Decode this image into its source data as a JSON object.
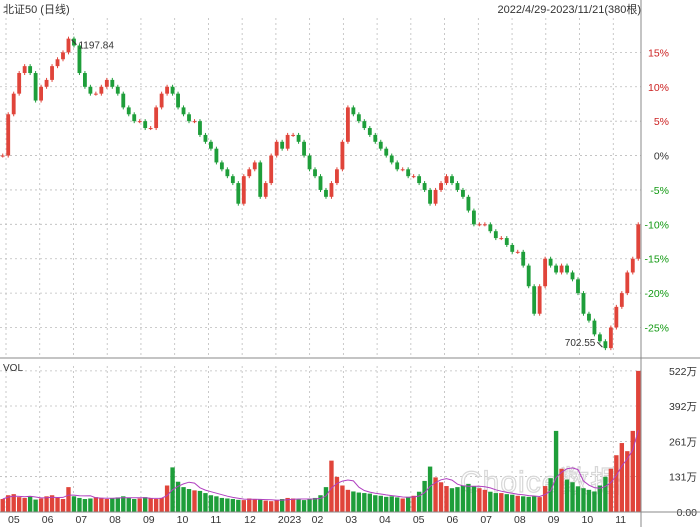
{
  "header": {
    "title": "北证50 (日线)",
    "range": "2022/4/29-2023/11/21(380根)"
  },
  "volume_panel": {
    "label": "VOL"
  },
  "watermark": "Choice数据",
  "colors": {
    "up": "#e0443a",
    "down": "#1e9e3a",
    "grid": "#bcbcbc",
    "text": "#333333",
    "axis_pos": "#cc2222",
    "axis_neg": "#119911",
    "ma": "#b040c0",
    "watermark": "#d8d8d8"
  },
  "chart_data": [
    {
      "type": "line",
      "title": "北证50 (日线)",
      "subtitle": "2022/4/29-2023/11/21(380根)",
      "ylabel": "",
      "y_unit": "%",
      "ylim": [
        -29,
        20
      ],
      "yticks": [
        15,
        10,
        5,
        0,
        -5,
        -10,
        -15,
        -20,
        -25
      ],
      "ytick_labels": [
        "15%",
        "10%",
        "5%",
        "0%",
        "-5%",
        "-10%",
        "-15%",
        "-20%",
        "-25%"
      ],
      "x_labels": [
        "05",
        "06",
        "07",
        "08",
        "09",
        "10",
        "11",
        "12",
        "2023",
        "02",
        "03",
        "04",
        "05",
        "06",
        "07",
        "08",
        "09",
        "10",
        "11"
      ],
      "grid": true,
      "annotations": [
        {
          "text": "1197.84",
          "kind": "high"
        },
        {
          "text": "702.55",
          "kind": "low"
        }
      ],
      "series": [
        {
          "values": [
            0,
            6,
            9,
            12,
            13,
            12,
            8,
            10,
            11,
            13,
            14,
            15,
            17,
            16,
            12,
            10,
            9,
            9,
            10,
            11,
            10,
            9,
            7,
            6,
            5,
            5,
            4,
            4,
            7,
            9,
            10,
            9,
            7,
            6,
            5,
            5,
            3,
            2,
            1,
            -1,
            -2,
            -3,
            -4,
            -7,
            -3,
            -2,
            -1,
            -6,
            -4,
            0,
            2,
            1,
            3,
            3,
            2,
            0,
            -2,
            -3,
            -5,
            -6,
            -4,
            -2,
            2,
            7,
            6,
            5,
            4,
            3,
            2,
            1,
            0,
            -1,
            -2,
            -2,
            -3,
            -3,
            -4,
            -5,
            -7,
            -5,
            -4,
            -3,
            -4,
            -5,
            -6,
            -8,
            -10,
            -10,
            -10,
            -11,
            -12,
            -12,
            -13,
            -14,
            -14,
            -16,
            -19,
            -23,
            -19,
            -15,
            -16,
            -17,
            -16,
            -17,
            -18,
            -20,
            -23,
            -24,
            -26,
            -27,
            -28,
            -25,
            -22,
            -20,
            -17,
            -15,
            -10
          ]
        }
      ]
    },
    {
      "type": "bar",
      "title": "VOL",
      "y_unit": "万",
      "ylim": [
        0,
        540
      ],
      "yticks": [
        522,
        392,
        261,
        131,
        0
      ],
      "ytick_labels": [
        "522万",
        "392万",
        "261万",
        "131万",
        "0.00"
      ],
      "grid": true,
      "series": [
        {
          "values": [
            48,
            62,
            66,
            55,
            52,
            58,
            46,
            50,
            58,
            62,
            52,
            48,
            92,
            58,
            52,
            48,
            50,
            55,
            52,
            48,
            50,
            54,
            58,
            52,
            48,
            50,
            55,
            50,
            48,
            52,
            98,
            165,
            112,
            92,
            85,
            80,
            78,
            70,
            62,
            58,
            52,
            50,
            48,
            45,
            44,
            50,
            48,
            46,
            42,
            40,
            44,
            48,
            52,
            50,
            46,
            44,
            48,
            52,
            62,
            92,
            190,
            130,
            98,
            82,
            76,
            72,
            70,
            68,
            62,
            60,
            56,
            58,
            54,
            50,
            56,
            60,
            75,
            115,
            168,
            128,
            110,
            96,
            88,
            92,
            98,
            104,
            96,
            88,
            82,
            75,
            70,
            70,
            66,
            64,
            60,
            58,
            56,
            58,
            55,
            96,
            125,
            300,
            160,
            120,
            110,
            95,
            88,
            82,
            76,
            98,
            130,
            160,
            210,
            255,
            225,
            300,
            522
          ]
        }
      ]
    }
  ]
}
